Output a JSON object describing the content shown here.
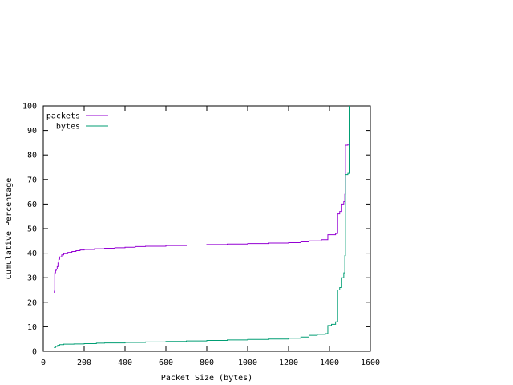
{
  "chart_data": {
    "type": "line",
    "title": "",
    "xlabel": "Packet Size (bytes)",
    "ylabel": "Cumulative Percentage",
    "xlim": [
      0,
      1600
    ],
    "ylim": [
      0,
      100
    ],
    "xticks": [
      0,
      200,
      400,
      600,
      800,
      1000,
      1200,
      1400,
      1600
    ],
    "yticks": [
      0,
      10,
      20,
      30,
      40,
      50,
      60,
      70,
      80,
      90,
      100
    ],
    "grid": false,
    "legend_position": "top-left",
    "step": true,
    "series": [
      {
        "name": "packets",
        "color": "#9400d3",
        "points": [
          [
            52,
            24
          ],
          [
            54,
            24.5
          ],
          [
            56,
            32
          ],
          [
            60,
            33
          ],
          [
            64,
            33.5
          ],
          [
            68,
            34.5
          ],
          [
            72,
            36
          ],
          [
            76,
            37.5
          ],
          [
            80,
            38.5
          ],
          [
            90,
            39.3
          ],
          [
            100,
            39.8
          ],
          [
            120,
            40.3
          ],
          [
            140,
            40.7
          ],
          [
            160,
            41.0
          ],
          [
            180,
            41.3
          ],
          [
            200,
            41.5
          ],
          [
            250,
            41.8
          ],
          [
            300,
            42.0
          ],
          [
            350,
            42.2
          ],
          [
            400,
            42.4
          ],
          [
            450,
            42.7
          ],
          [
            500,
            42.8
          ],
          [
            600,
            43.1
          ],
          [
            700,
            43.3
          ],
          [
            800,
            43.5
          ],
          [
            900,
            43.7
          ],
          [
            1000,
            43.9
          ],
          [
            1100,
            44.1
          ],
          [
            1200,
            44.3
          ],
          [
            1260,
            44.6
          ],
          [
            1300,
            45.0
          ],
          [
            1360,
            45.5
          ],
          [
            1392,
            47.5
          ],
          [
            1430,
            48.0
          ],
          [
            1440,
            56.0
          ],
          [
            1450,
            57.0
          ],
          [
            1460,
            60.0
          ],
          [
            1470,
            61.0
          ],
          [
            1475,
            64.0
          ],
          [
            1478,
            84.0
          ],
          [
            1490,
            84.3
          ],
          [
            1500,
            100
          ]
        ]
      },
      {
        "name": "bytes",
        "color": "#009e73",
        "points": [
          [
            52,
            1.5
          ],
          [
            60,
            2.0
          ],
          [
            70,
            2.4
          ],
          [
            80,
            2.7
          ],
          [
            100,
            2.9
          ],
          [
            150,
            3.0
          ],
          [
            200,
            3.1
          ],
          [
            260,
            3.3
          ],
          [
            300,
            3.4
          ],
          [
            400,
            3.6
          ],
          [
            500,
            3.8
          ],
          [
            600,
            4.0
          ],
          [
            700,
            4.2
          ],
          [
            800,
            4.4
          ],
          [
            900,
            4.6
          ],
          [
            1000,
            4.8
          ],
          [
            1100,
            5.0
          ],
          [
            1200,
            5.3
          ],
          [
            1260,
            5.8
          ],
          [
            1300,
            6.5
          ],
          [
            1340,
            6.9
          ],
          [
            1380,
            7.2
          ],
          [
            1392,
            10.5
          ],
          [
            1410,
            11.0
          ],
          [
            1430,
            12.0
          ],
          [
            1440,
            25.0
          ],
          [
            1450,
            26.0
          ],
          [
            1460,
            30.0
          ],
          [
            1470,
            32.0
          ],
          [
            1475,
            39.0
          ],
          [
            1478,
            72.0
          ],
          [
            1490,
            72.5
          ],
          [
            1500,
            100
          ]
        ]
      }
    ]
  }
}
